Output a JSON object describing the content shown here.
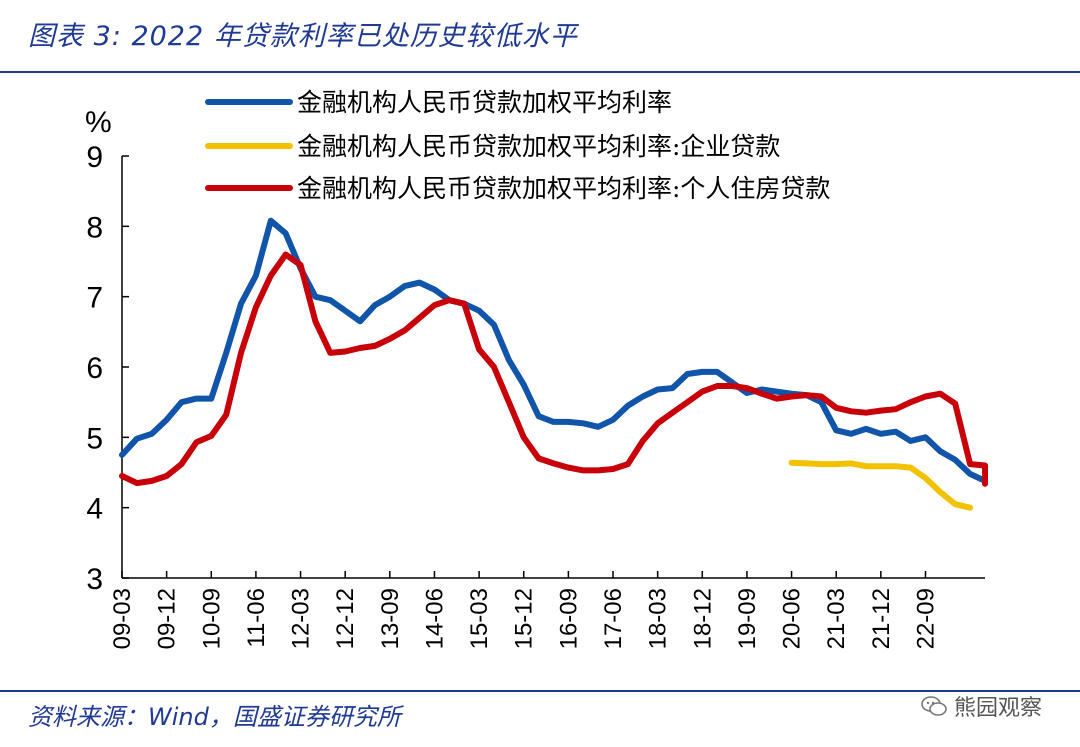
{
  "header": {
    "title": "图表 3:  2022 年贷款利率已处历史较低水平"
  },
  "footer": {
    "source": "资料来源：Wind，国盛证券研究所",
    "watermark": "熊园观察"
  },
  "chart_data": {
    "type": "line",
    "title": "",
    "ylabel": "%",
    "xlabel": "",
    "ylim": [
      3,
      9
    ],
    "yticks": [
      "3",
      "4",
      "5",
      "6",
      "7",
      "8",
      "9"
    ],
    "xticks": [
      "09-03",
      "09-12",
      "10-09",
      "11-06",
      "12-03",
      "12-12",
      "13-09",
      "14-06",
      "15-03",
      "15-12",
      "16-09",
      "17-06",
      "18-03",
      "18-12",
      "19-09",
      "20-06",
      "21-03",
      "21-12",
      "22-09"
    ],
    "legend_position": "top",
    "colors": {
      "overall": "#1155aa",
      "enterprise": "#f2c200",
      "housing": "#c8000a"
    },
    "series": [
      {
        "key": "overall",
        "name": "金融机构人民币贷款加权平均利率",
        "start_month_index": 0,
        "values": [
          4.75,
          4.98,
          5.05,
          5.25,
          5.5,
          5.55,
          5.55,
          6.2,
          6.9,
          7.3,
          8.08,
          7.9,
          7.4,
          7.0,
          6.95,
          6.8,
          6.65,
          6.88,
          7.0,
          7.15,
          7.2,
          7.1,
          6.95,
          6.9,
          6.8,
          6.6,
          6.1,
          5.75,
          5.3,
          5.22,
          5.22,
          5.2,
          5.15,
          5.25,
          5.45,
          5.58,
          5.68,
          5.7,
          5.9,
          5.93,
          5.93,
          5.78,
          5.63,
          5.68,
          5.65,
          5.62,
          5.6,
          5.5,
          5.1,
          5.05,
          5.12,
          5.05,
          5.08,
          4.95,
          5.0,
          4.8,
          4.68,
          4.48,
          4.38,
          4.35
        ]
      },
      {
        "key": "enterprise",
        "name": "金融机构人民币贷款加权平均利率:企业贷款",
        "start_month_index": 45,
        "values": [
          4.64,
          4.63,
          4.62,
          4.62,
          4.63,
          4.59,
          4.59,
          4.59,
          4.57,
          4.42,
          4.22,
          4.05,
          4.0
        ]
      },
      {
        "key": "housing",
        "name": "金融机构人民币贷款加权平均利率:个人住房贷款",
        "start_month_index": 0,
        "values": [
          4.45,
          4.35,
          4.38,
          4.45,
          4.62,
          4.93,
          5.02,
          5.32,
          6.2,
          6.85,
          7.3,
          7.6,
          7.45,
          6.65,
          6.2,
          6.22,
          6.27,
          6.3,
          6.4,
          6.52,
          6.7,
          6.88,
          6.95,
          6.9,
          6.25,
          6.0,
          5.5,
          5.0,
          4.7,
          4.63,
          4.57,
          4.53,
          4.53,
          4.55,
          4.62,
          4.95,
          5.2,
          5.35,
          5.5,
          5.65,
          5.73,
          5.73,
          5.7,
          5.62,
          5.55,
          5.58,
          5.6,
          5.58,
          5.42,
          5.37,
          5.35,
          5.38,
          5.4,
          5.5,
          5.58,
          5.62,
          5.48,
          4.62,
          4.6,
          4.34
        ]
      }
    ]
  }
}
